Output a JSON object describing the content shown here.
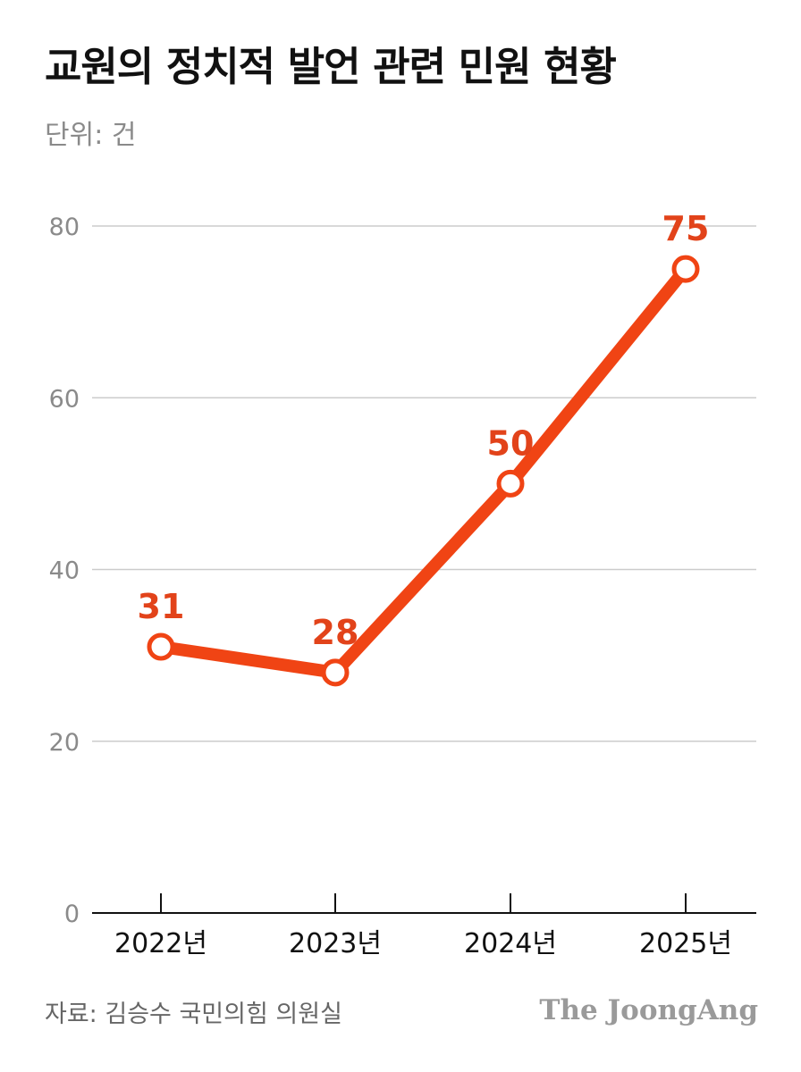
{
  "header": {
    "title": "교원의 정치적 발언 관련 민원 현황",
    "unit": "단위: 건"
  },
  "footer": {
    "source": "자료: 김승수 국민의힘 의원실",
    "brand": "The JoongAng"
  },
  "colors": {
    "line": "#f04414",
    "label": "#e2431a",
    "grid": "#cccccc",
    "axis": "#111111",
    "tick_text": "#8a8a8a",
    "title": "#111111"
  },
  "chart_data": {
    "type": "line",
    "title": "교원의 정치적 발언 관련 민원 현황",
    "subtitle": "단위: 건",
    "categories": [
      "2022년",
      "2023년",
      "2024년",
      "2025년"
    ],
    "series": [
      {
        "values": [
          31,
          28,
          50,
          75
        ]
      }
    ],
    "data_labels": [
      "31",
      "28",
      "50",
      "75"
    ],
    "ylim": [
      0,
      80
    ],
    "yticks": [
      0,
      20,
      40,
      60,
      80
    ],
    "ytick_labels": [
      "0",
      "20",
      "40",
      "60",
      "80"
    ],
    "grid": true,
    "legend": "none"
  }
}
